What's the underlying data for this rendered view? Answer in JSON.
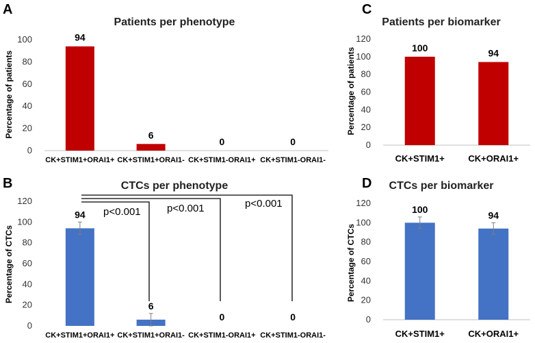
{
  "chart_data": [
    {
      "panel": "A",
      "type": "bar",
      "title": "Patients per phenotype",
      "ylabel": "Percentage of patients",
      "xlabel": "",
      "categories": [
        "CK+STIM1+ORAI1+",
        "CK+STIM1+ORAI1-",
        "CK+STIM1-ORAI1+",
        "CK+STIM1-ORAI1-"
      ],
      "values": [
        94,
        6,
        0,
        0
      ],
      "data_labels": [
        "94",
        "6",
        "0",
        "0"
      ],
      "ylim": [
        0,
        100
      ],
      "yticks": [
        0,
        20,
        40,
        60,
        80,
        100
      ],
      "color": "#c00000",
      "grid": false
    },
    {
      "panel": "B",
      "type": "bar",
      "title": "CTCs per phenotype",
      "ylabel": "Percentage of CTCs",
      "xlabel": "",
      "categories": [
        "CK+STIM1+ORAI1+",
        "CK+STIM1+ORAI1-",
        "CK+STIM1-ORAI1+",
        "CK+STIM1-ORAI1-"
      ],
      "values": [
        94,
        6,
        0,
        0
      ],
      "errors": [
        6,
        6,
        0,
        0
      ],
      "data_labels": [
        "94",
        "6",
        "0",
        "0"
      ],
      "ylim": [
        0,
        120
      ],
      "yticks": [
        0,
        20,
        40,
        60,
        80,
        100,
        120
      ],
      "color": "#4472c4",
      "grid": false,
      "annotations": [
        "p<0.001",
        "p<0.001",
        "p<0.001"
      ]
    },
    {
      "panel": "C",
      "type": "bar",
      "title": "Patients per biomarker",
      "ylabel": "Percentage of patients",
      "xlabel": "",
      "categories": [
        "CK+STIM1+",
        "CK+ORAI1+"
      ],
      "values": [
        100,
        94
      ],
      "data_labels": [
        "100",
        "94"
      ],
      "ylim": [
        0,
        120
      ],
      "yticks": [
        0,
        20,
        40,
        60,
        80,
        100,
        120
      ],
      "color": "#c00000",
      "grid": false
    },
    {
      "panel": "D",
      "type": "bar",
      "title": "CTCs per biomarker",
      "ylabel": "Percentage of CTCs",
      "xlabel": "",
      "categories": [
        "CK+STIM1+",
        "CK+ORAI1+"
      ],
      "values": [
        100,
        94
      ],
      "errors": [
        6,
        6
      ],
      "data_labels": [
        "100",
        "94"
      ],
      "ylim": [
        0,
        120
      ],
      "yticks": [
        0,
        20,
        40,
        60,
        80,
        100,
        120
      ],
      "color": "#4472c4",
      "grid": false
    }
  ]
}
